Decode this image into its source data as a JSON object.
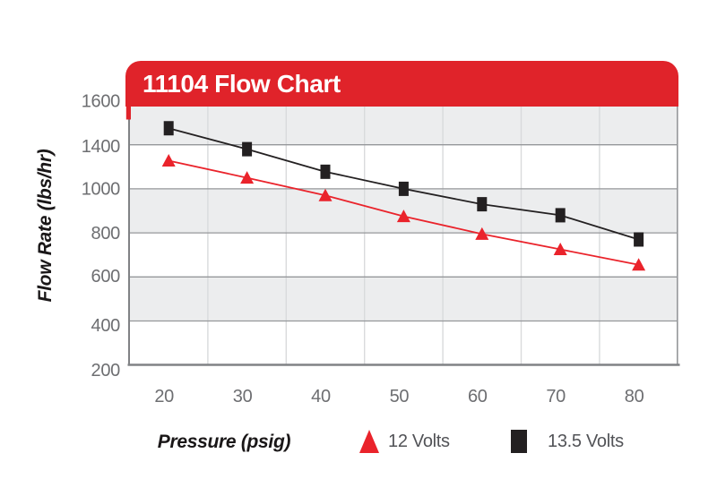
{
  "chart_data": {
    "type": "line",
    "title": "11104 Flow Chart",
    "xlabel": "Pressure (psig)",
    "ylabel": "Flow Rate (lbs/hr)",
    "x": [
      20,
      30,
      40,
      50,
      60,
      70,
      80
    ],
    "x_tick_labels": [
      "20",
      "30",
      "40",
      "50",
      "60",
      "70",
      "80"
    ],
    "y_tick_labels": [
      "1600",
      "1400",
      "1000",
      "800",
      "600",
      "400",
      "200"
    ],
    "ylim_printed": [
      200,
      1600
    ],
    "legend_position": "bottom",
    "grid": {
      "horizontal": true,
      "vertical": true,
      "alternating_bands": true
    },
    "series": [
      {
        "name": "13.5 Volts",
        "marker": "square",
        "color": "#232021",
        "values": [
          1475,
          1360,
          1155,
          1000,
          930,
          880,
          770
        ]
      },
      {
        "name": "12 Volts",
        "marker": "triangle",
        "color": "#ea232b",
        "values": [
          1255,
          1100,
          970,
          875,
          795,
          725,
          655
        ]
      }
    ],
    "legend": [
      {
        "label": "12 Volts",
        "marker": "triangle",
        "color": "#ea232b"
      },
      {
        "label": "13.5 Volts",
        "marker": "square",
        "color": "#232021"
      }
    ]
  },
  "colors": {
    "banner_red": "#e0232a",
    "banner_text": "#ffffff",
    "band_gray": "#ecedee",
    "grid_dark": "#95979a",
    "grid_light": "#d9dadc",
    "axis_line": "#808285",
    "tick_text": "#6d6e71",
    "axis_title_text": "#1a1718",
    "legend_text": "#525357"
  }
}
